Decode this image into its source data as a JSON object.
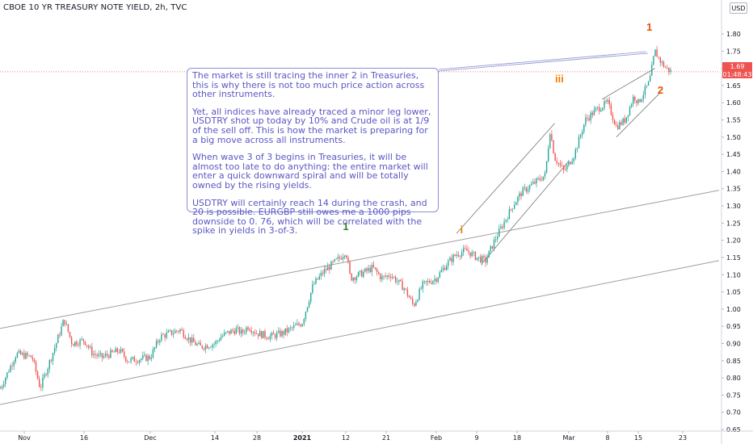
{
  "header": {
    "symbol_title": "CBOE 10 YR TREASURY NOTE YIELD, 2h, TVC",
    "currency": "USD"
  },
  "price_tag": {
    "price": "1.69",
    "countdown": "01:48:43"
  },
  "note": {
    "paragraphs": [
      "The market is still tracing the inner 2 in Treasuries, this is why there is not too much price action across other instruments.",
      "Yet, all indices have already traced a minor leg lower, USDTRY shot up today by 10% and Crude oil is at 1/9 of the sell off. This is how the market is preparing for a big move across all instruments.",
      "When wave 3 of 3 begins in Treasuries, it will be almost too late to do anything: the entire market will enter a quick downward spiral and will be totally owned by the rising yields.",
      "USDTRY will certainly reach 14 during the crash, and 20 is possible. EURGBP still owes me a 1000 pips downside to 0. 76, which will be correlated with the spike in yields in 3-of-3."
    ]
  },
  "wave_labels": [
    {
      "id": "wave-1-green",
      "text": "1",
      "color": "#2e7d32",
      "date": "2021-01-12",
      "value": 1.235
    },
    {
      "id": "wave-i-orange",
      "text": "i",
      "color": "#f57c00",
      "date": "2021-02-06",
      "value": 1.225
    },
    {
      "id": "wave-iii-orange",
      "text": "iii",
      "color": "#f57c00",
      "date": "2021-02-27",
      "value": 1.665
    },
    {
      "id": "wave-1-orange",
      "text": "1",
      "color": "#e65100",
      "date": "2021-03-17",
      "value": 1.815
    },
    {
      "id": "wave-2-orange",
      "text": "2",
      "color": "#e65100",
      "date": "2021-03-19",
      "value": 1.63
    }
  ],
  "chart_data": {
    "type": "candlestick",
    "title": "CBOE 10 YR TREASURY NOTE YIELD, 2h, TVC",
    "ylim": [
      0.65,
      1.85
    ],
    "y_ticks": [
      0.65,
      0.7,
      0.75,
      0.8,
      0.85,
      0.9,
      0.95,
      1.0,
      1.05,
      1.1,
      1.15,
      1.2,
      1.25,
      1.3,
      1.35,
      1.4,
      1.45,
      1.5,
      1.55,
      1.6,
      1.65,
      1.7,
      1.75,
      1.8
    ],
    "y_tick_labels": [
      "0.65",
      "0.70",
      "0.75",
      "0.80",
      "0.85",
      "0.90",
      "0.95",
      "1.00",
      "1.05",
      "1.10",
      "1.15",
      "1.20",
      "1.25",
      "1.30",
      "1.35",
      "1.40",
      "1.45",
      "1.50",
      "1.55",
      "1.60",
      "1.65",
      "1.70",
      "1.75",
      "1.80"
    ],
    "x_ticks": [
      {
        "label": "Nov",
        "date": "2020-11-01"
      },
      {
        "label": "16",
        "date": "2020-11-16"
      },
      {
        "label": "Dec",
        "date": "2020-12-01"
      },
      {
        "label": "14",
        "date": "2020-12-14"
      },
      {
        "label": "28",
        "date": "2020-12-28"
      },
      {
        "label": "2021",
        "date": "2021-01-04"
      },
      {
        "label": "12",
        "date": "2021-01-12"
      },
      {
        "label": "21",
        "date": "2021-01-21"
      },
      {
        "label": "Feb",
        "date": "2021-02-01"
      },
      {
        "label": "9",
        "date": "2021-02-09"
      },
      {
        "label": "18",
        "date": "2021-02-18"
      },
      {
        "label": "Mar",
        "date": "2021-03-01"
      },
      {
        "label": "8",
        "date": "2021-03-08"
      },
      {
        "label": "15",
        "date": "2021-03-15"
      },
      {
        "label": "23",
        "date": "2021-03-23"
      }
    ],
    "price_path": [
      [
        "2020-10-26",
        0.77
      ],
      [
        "2020-10-30",
        0.87
      ],
      [
        "2020-11-03",
        0.86
      ],
      [
        "2020-11-05",
        0.77
      ],
      [
        "2020-11-09",
        0.9
      ],
      [
        "2020-11-11",
        0.97
      ],
      [
        "2020-11-13",
        0.9
      ],
      [
        "2020-11-16",
        0.91
      ],
      [
        "2020-11-18",
        0.87
      ],
      [
        "2020-11-20",
        0.86
      ],
      [
        "2020-11-24",
        0.88
      ],
      [
        "2020-11-26",
        0.85
      ],
      [
        "2020-12-01",
        0.86
      ],
      [
        "2020-12-03",
        0.92
      ],
      [
        "2020-12-07",
        0.94
      ],
      [
        "2020-12-09",
        0.91
      ],
      [
        "2020-12-11",
        0.89
      ],
      [
        "2020-12-14",
        0.9
      ],
      [
        "2020-12-16",
        0.92
      ],
      [
        "2020-12-18",
        0.93
      ],
      [
        "2020-12-21",
        0.94
      ],
      [
        "2020-12-23",
        0.93
      ],
      [
        "2020-12-25",
        0.95
      ],
      [
        "2020-12-28",
        0.93
      ],
      [
        "2020-12-30",
        0.92
      ],
      [
        "2021-01-01",
        0.93
      ],
      [
        "2021-01-04",
        0.96
      ],
      [
        "2021-01-06",
        1.07
      ],
      [
        "2021-01-08",
        1.11
      ],
      [
        "2021-01-11",
        1.15
      ],
      [
        "2021-01-12",
        1.17
      ],
      [
        "2021-01-13",
        1.09
      ],
      [
        "2021-01-15",
        1.1
      ],
      [
        "2021-01-18",
        1.12
      ],
      [
        "2021-01-20",
        1.09
      ],
      [
        "2021-01-22",
        1.1
      ],
      [
        "2021-01-25",
        1.06
      ],
      [
        "2021-01-27",
        1.01
      ],
      [
        "2021-01-29",
        1.07
      ],
      [
        "2021-02-01",
        1.09
      ],
      [
        "2021-02-03",
        1.13
      ],
      [
        "2021-02-05",
        1.16
      ],
      [
        "2021-02-07",
        1.17
      ],
      [
        "2021-02-09",
        1.15
      ],
      [
        "2021-02-11",
        1.14
      ],
      [
        "2021-02-13",
        1.2
      ],
      [
        "2021-02-15",
        1.25
      ],
      [
        "2021-02-17",
        1.3
      ],
      [
        "2021-02-19",
        1.34
      ],
      [
        "2021-02-22",
        1.37
      ],
      [
        "2021-02-24",
        1.39
      ],
      [
        "2021-02-25",
        1.52
      ],
      [
        "2021-02-26",
        1.44
      ],
      [
        "2021-02-28",
        1.4
      ],
      [
        "2021-03-02",
        1.45
      ],
      [
        "2021-03-04",
        1.55
      ],
      [
        "2021-03-06",
        1.58
      ],
      [
        "2021-03-08",
        1.6
      ],
      [
        "2021-03-10",
        1.53
      ],
      [
        "2021-03-12",
        1.55
      ],
      [
        "2021-03-14",
        1.62
      ],
      [
        "2021-03-15",
        1.6
      ],
      [
        "2021-03-16",
        1.63
      ],
      [
        "2021-03-17",
        1.66
      ],
      [
        "2021-03-18",
        1.75
      ],
      [
        "2021-03-19",
        1.72
      ],
      [
        "2021-03-20",
        1.7
      ],
      [
        "2021-03-21",
        1.69
      ]
    ],
    "last_price": 1.69
  },
  "colors": {
    "up_candle": "#26a69a",
    "down_candle": "#ef5350",
    "channel_line": "#9e9e9e",
    "note_line": "#8a8fd0",
    "axis_text": "#131722",
    "last_price_line": "#ef5350"
  }
}
